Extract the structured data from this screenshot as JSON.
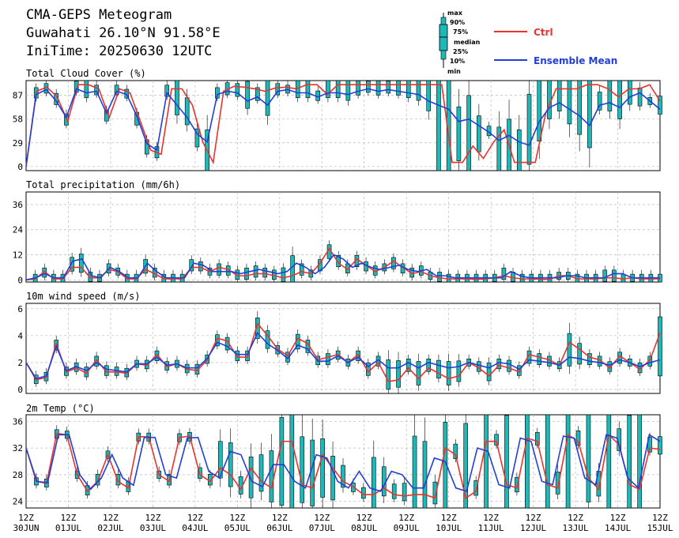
{
  "header": {
    "title": "CMA-GEPS Meteogram",
    "location": "Guwahati 26.10°N 91.58°E",
    "init": "IniTime: 20250630 12UTC"
  },
  "legend": {
    "box_labels": [
      "max",
      "90%",
      "75%",
      "median",
      "25%",
      "10%",
      "min"
    ],
    "ctrl": "Ctrl",
    "mean": "Ensemble Mean"
  },
  "colors": {
    "ctrl": "#e8332e",
    "mean": "#1f3fd8",
    "box": "#1fb8b8"
  },
  "x_axis": {
    "labels": [
      {
        "top": "12Z",
        "bottom": "30JUN"
      },
      {
        "top": "12Z",
        "bottom": "01JUL"
      },
      {
        "top": "12Z",
        "bottom": "02JUL"
      },
      {
        "top": "12Z",
        "bottom": "03JUL"
      },
      {
        "top": "12Z",
        "bottom": "04JUL"
      },
      {
        "top": "12Z",
        "bottom": "05JUL"
      },
      {
        "top": "12Z",
        "bottom": "06JUL"
      },
      {
        "top": "12Z",
        "bottom": "07JUL"
      },
      {
        "top": "12Z",
        "bottom": "08JUL"
      },
      {
        "top": "12Z",
        "bottom": "09JUL"
      },
      {
        "top": "12Z",
        "bottom": "10JUL"
      },
      {
        "top": "12Z",
        "bottom": "11JUL"
      },
      {
        "top": "12Z",
        "bottom": "12JUL"
      },
      {
        "top": "12Z",
        "bottom": "13JUL"
      },
      {
        "top": "12Z",
        "bottom": "14JUL"
      },
      {
        "top": "12Z",
        "bottom": "15JUL"
      }
    ]
  },
  "chart_data": [
    {
      "type": "line",
      "title": "Total Cloud Cover (%)",
      "yticks": [
        0,
        29,
        58,
        87
      ],
      "ylim": [
        -5,
        105
      ],
      "x_days_from_init": [
        0,
        15
      ],
      "series": [
        {
          "name": "Ctrl",
          "values": [
            0,
            92,
            97,
            85,
            55,
            100,
            100,
            95,
            60,
            95,
            90,
            55,
            20,
            15,
            95,
            95,
            75,
            30,
            5,
            92,
            98,
            97,
            95,
            92,
            96,
            97,
            95,
            100,
            100,
            88,
            100,
            100,
            100,
            100,
            100,
            100,
            100,
            100,
            100,
            100,
            100,
            5,
            5,
            25,
            10,
            30,
            45,
            5,
            5,
            5,
            65,
            95,
            95,
            95,
            100,
            100,
            95,
            85,
            95,
            95,
            100,
            80
          ]
        },
        {
          "name": "Ensemble Mean",
          "values": [
            0,
            88,
            94,
            80,
            60,
            95,
            90,
            92,
            65,
            92,
            88,
            62,
            28,
            20,
            90,
            75,
            60,
            40,
            30,
            88,
            92,
            90,
            80,
            85,
            75,
            92,
            94,
            90,
            90,
            85,
            90,
            90,
            88,
            92,
            95,
            92,
            94,
            92,
            90,
            88,
            80,
            75,
            70,
            55,
            58,
            50,
            42,
            32,
            38,
            30,
            26,
            55,
            72,
            78,
            70,
            62,
            50,
            75,
            78,
            72,
            85,
            90,
            80,
            70
          ]
        }
      ]
    },
    {
      "type": "line",
      "title": "Total precipitation (mm/6h)",
      "yticks": [
        0,
        12,
        24,
        36
      ],
      "ylim": [
        -1,
        42
      ],
      "x_days_from_init": [
        0,
        15
      ],
      "series": [
        {
          "name": "Ctrl",
          "values": [
            0,
            0.5,
            4,
            0.5,
            0.5,
            6,
            6,
            1,
            1,
            5,
            4,
            0.5,
            0.5,
            5,
            3,
            0.5,
            0.5,
            0.5,
            6,
            6,
            4,
            6,
            5,
            2,
            2,
            3,
            3,
            2,
            1,
            2,
            4,
            3,
            8,
            15,
            8,
            5,
            10,
            7,
            4,
            6,
            9,
            6,
            3,
            4,
            2,
            1,
            0.5,
            0.5,
            0.5,
            0.3,
            0.5,
            1,
            2,
            1,
            0.5,
            0.5,
            0.3,
            0.3,
            2,
            2,
            0.5,
            0.5,
            0.5,
            1,
            1,
            0.5,
            1,
            0.5,
            0.5,
            0.5
          ]
        },
        {
          "name": "Ensemble Mean",
          "values": [
            0,
            1,
            3,
            1,
            1,
            9,
            10,
            2,
            1,
            6,
            4,
            1,
            1,
            8,
            4,
            1,
            1,
            1,
            8,
            7,
            4,
            4,
            4,
            3,
            4,
            5,
            4,
            3,
            4,
            8,
            6,
            3,
            6,
            12,
            10,
            6,
            8,
            6,
            5,
            6,
            7,
            5,
            4,
            5,
            2,
            2,
            1,
            1,
            1,
            1,
            1,
            1,
            4,
            2,
            1,
            1,
            1,
            1,
            2,
            2,
            1,
            1,
            1,
            3,
            3,
            1,
            1,
            1,
            1
          ]
        }
      ]
    },
    {
      "type": "line",
      "title": "10m wind speed (m/s)",
      "yticks": [
        0,
        2,
        4,
        6
      ],
      "ylim": [
        -0.3,
        6.4
      ],
      "x_days_from_init": [
        0,
        15
      ],
      "series": [
        {
          "name": "Ctrl",
          "values": [
            2,
            0.7,
            0.9,
            3.4,
            1.3,
            1.6,
            1.2,
            2.2,
            1.3,
            1.3,
            1.2,
            1.9,
            1.8,
            2.6,
            1.7,
            1.9,
            1.5,
            1.4,
            2.2,
            3.8,
            3.6,
            2.4,
            2.4,
            4.9,
            4.0,
            3.0,
            2.5,
            3.8,
            3.4,
            2.2,
            2.4,
            2.6,
            2.0,
            2.6,
            1.3,
            2.0,
            0.6,
            0.7,
            1.6,
            0.8,
            1.6,
            1.2,
            0.8,
            1.0,
            2.0,
            1.6,
            1.0,
            1.8,
            1.6,
            1.3,
            2.6,
            2.4,
            2.2,
            1.8,
            3.5,
            3.0,
            2.4,
            2.2,
            1.6,
            2.5,
            2.0,
            1.5,
            2.2,
            4.2
          ]
        },
        {
          "name": "Ensemble Mean",
          "values": [
            2,
            0.8,
            1.0,
            3.2,
            1.4,
            1.7,
            1.4,
            2.0,
            1.5,
            1.4,
            1.3,
            1.9,
            1.9,
            2.4,
            1.8,
            1.9,
            1.6,
            1.6,
            2.3,
            3.5,
            3.2,
            2.6,
            2.6,
            4.2,
            3.4,
            2.9,
            2.3,
            3.3,
            3.0,
            2.1,
            2.1,
            2.5,
            2.0,
            2.4,
            1.7,
            2.2,
            1.6,
            1.6,
            2.0,
            1.6,
            2.0,
            1.8,
            1.6,
            1.7,
            2.0,
            1.8,
            1.6,
            2.0,
            1.9,
            1.5,
            2.2,
            2.1,
            2.0,
            1.8,
            2.4,
            2.3,
            2.1,
            2.0,
            1.8,
            2.2,
            2.0,
            1.7,
            2.0,
            2.2
          ]
        }
      ]
    },
    {
      "type": "line",
      "title": "2m Temp (°C)",
      "yticks": [
        24,
        28,
        32,
        36
      ],
      "ylim": [
        23,
        37
      ],
      "x_days_from_init": [
        0,
        15
      ],
      "series": [
        {
          "name": "Ctrl",
          "values": [
            32,
            27,
            26.7,
            34.2,
            34,
            28,
            25.5,
            27,
            31,
            27,
            26,
            33.7,
            33.7,
            28,
            27,
            33.6,
            33.8,
            28,
            27,
            29,
            28,
            25.8,
            29,
            27,
            26,
            33,
            33,
            26.5,
            26,
            31,
            29,
            27,
            26.2,
            25,
            25,
            26,
            25,
            24.8,
            25,
            25,
            24.5,
            32,
            31,
            24.5,
            25.5,
            33,
            33,
            26.5,
            26,
            33.5,
            33,
            26.5,
            26,
            34,
            33,
            27.5,
            25.8,
            34,
            32.5,
            26.5,
            25.8,
            32,
            31.8
          ]
        },
        {
          "name": "Ensemble Mean",
          "values": [
            32,
            27,
            26.8,
            34,
            34,
            28,
            25.8,
            27.5,
            31,
            27.5,
            26.4,
            33.6,
            33.6,
            28,
            27.5,
            33.5,
            33.6,
            28.5,
            27.5,
            31.5,
            31,
            27,
            26.2,
            29.5,
            29.5,
            27,
            26,
            31,
            30.5,
            27,
            26,
            28.5,
            26,
            25.5,
            28.5,
            28,
            26,
            26,
            30.5,
            30,
            26,
            25.5,
            32,
            31.5,
            26.5,
            26,
            33.5,
            33,
            27,
            26.5,
            33.8,
            33.5,
            27.5,
            26.5,
            34,
            33.5,
            27.5,
            26,
            34,
            33
          ]
        }
      ]
    }
  ]
}
